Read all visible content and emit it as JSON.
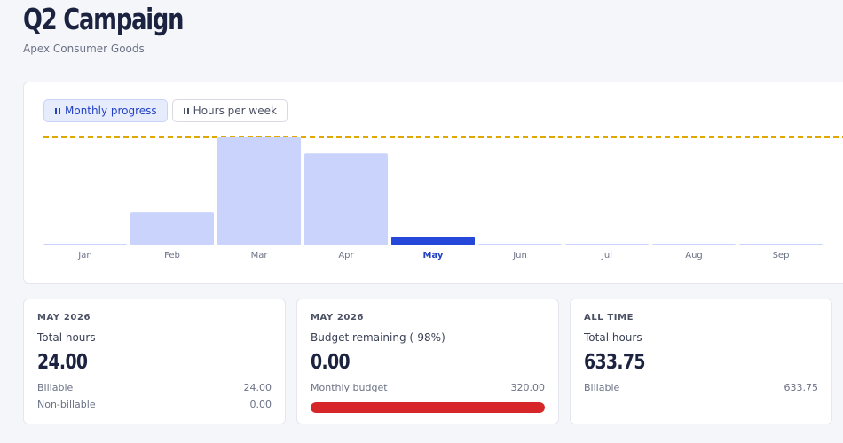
{
  "header": {
    "title": "Q2 Campaign",
    "subtitle": "Apex Consumer Goods"
  },
  "tabs": [
    {
      "label": "Monthly progress",
      "active": true,
      "icon": "bar-chart-icon"
    },
    {
      "label": "Hours per week",
      "active": false,
      "icon": "bar-chart-icon"
    }
  ],
  "chart_data": {
    "type": "bar",
    "categories": [
      "Jan",
      "Feb",
      "Mar",
      "Apr",
      "May",
      "Jun",
      "Jul",
      "Aug",
      "Sep"
    ],
    "values": [
      1,
      155,
      500,
      425,
      40,
      1,
      1,
      1,
      1
    ],
    "highlight_category": "May",
    "reference_line": 500,
    "ylim": [
      0,
      500
    ],
    "colors": {
      "bar": "#c9d3fb",
      "highlight": "#2648d8",
      "reference_line": "#e0a800",
      "tick_label": "#6b7285",
      "tick_label_highlight": "#2342c2"
    }
  },
  "stats": [
    {
      "eyebrow": "MAY 2026",
      "label": "Total hours",
      "value": "24.00",
      "rows": [
        {
          "label": "Billable",
          "value": "24.00"
        },
        {
          "label": "Non-billable",
          "value": "0.00"
        }
      ]
    },
    {
      "eyebrow": "MAY 2026",
      "label": "Budget remaining (-98%)",
      "value": "0.00",
      "rows": [
        {
          "label": "Monthly budget",
          "value": "320.00"
        }
      ],
      "budget_used_fraction": 1.0,
      "budget_color": "#d7262a"
    },
    {
      "eyebrow": "ALL TIME",
      "label": "Total hours",
      "value": "633.75",
      "rows": [
        {
          "label": "Billable",
          "value": "633.75"
        }
      ]
    }
  ]
}
